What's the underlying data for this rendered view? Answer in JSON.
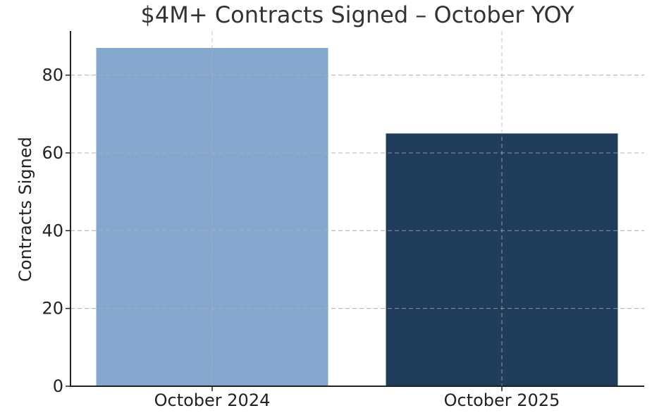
{
  "chart_data": {
    "type": "bar",
    "title": "$4M+ Contracts Signed – October YOY",
    "xlabel": "",
    "ylabel": "Contracts Signed",
    "categories": [
      "October 2024",
      "October 2025"
    ],
    "values": [
      87,
      65
    ],
    "bar_colors": [
      "#85a7cd",
      "#1f3d5a"
    ],
    "ylim": [
      0,
      91.35
    ],
    "yticks": [
      0,
      20,
      40,
      60,
      80
    ],
    "grid": true
  }
}
